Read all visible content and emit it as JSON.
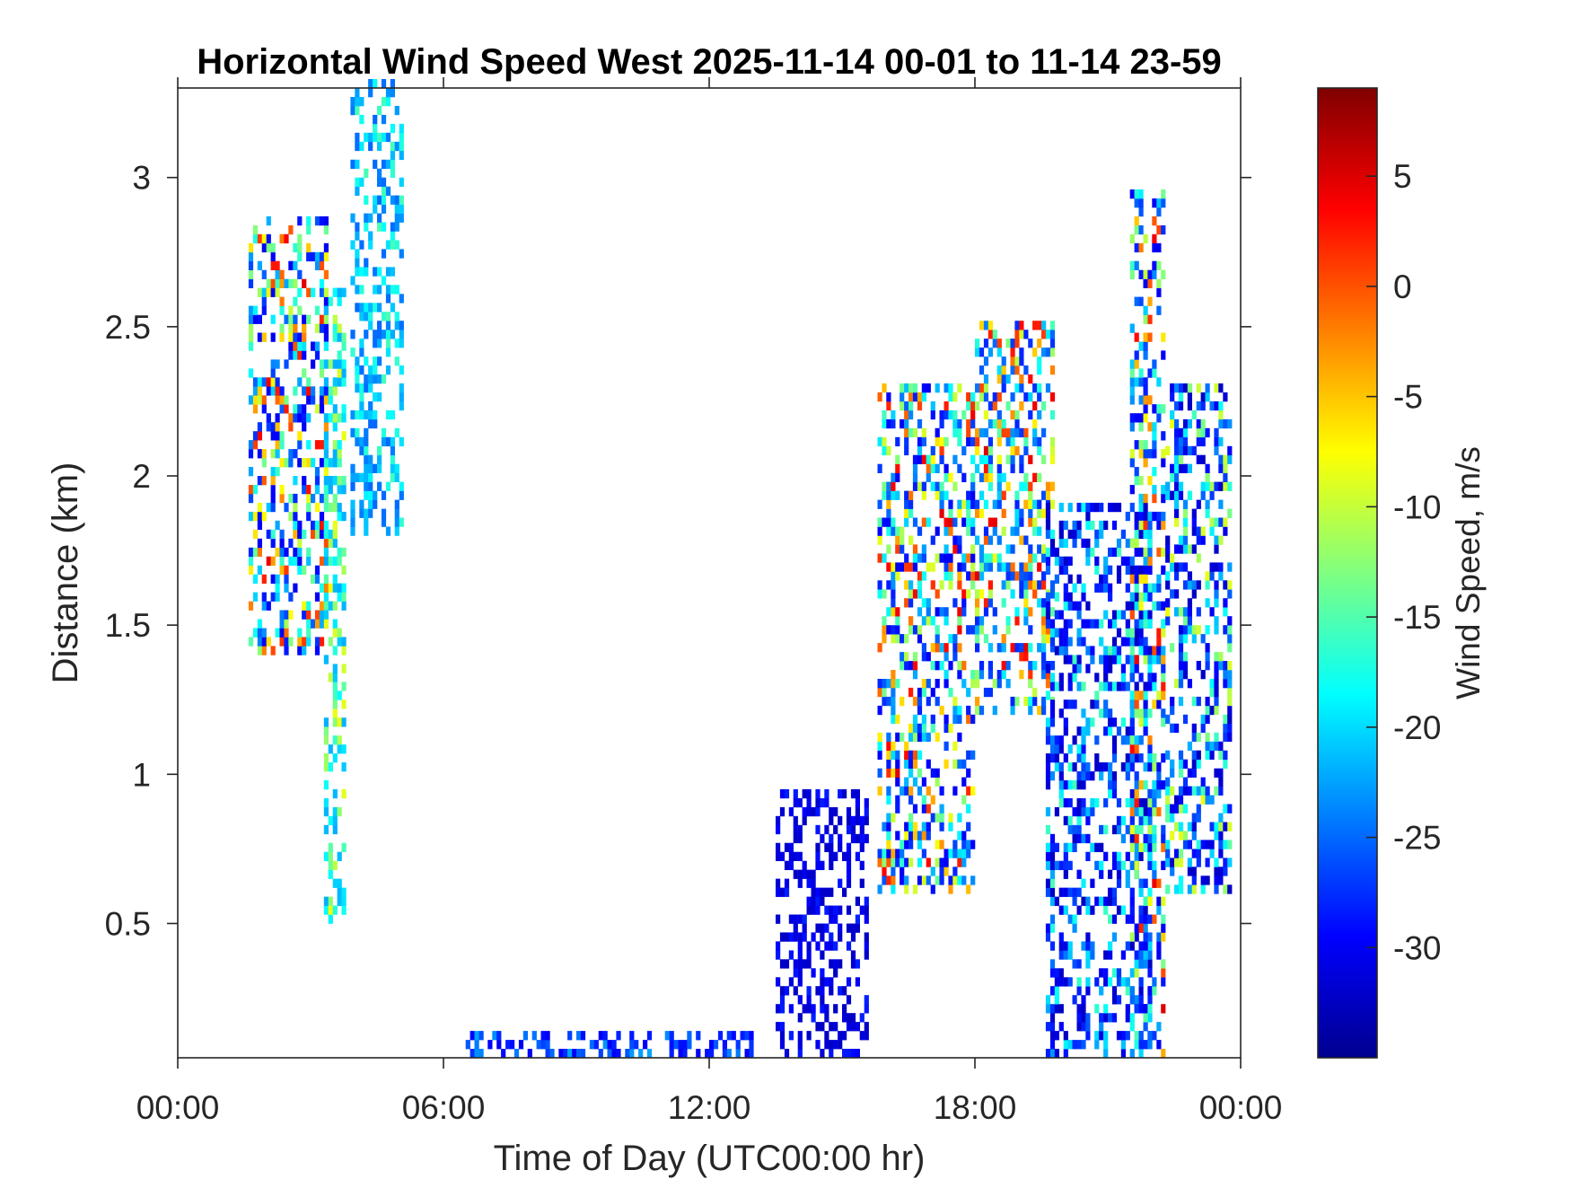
{
  "chart_data": {
    "type": "heatmap",
    "title": "Horizontal Wind Speed West 2025-11-14 00-01 to 11-14 23-59",
    "xlabel": "Time of Day (UTC00:00 hr)",
    "ylabel": "Distance (km)",
    "colorbar_label": "Wind Speed, m/s",
    "xlim": [
      0,
      24
    ],
    "ylim": [
      0.05,
      3.3
    ],
    "clim": [
      -35,
      9
    ],
    "colormap": "jet",
    "x_ticks": [
      {
        "value": 0,
        "label": "00:00"
      },
      {
        "value": 6,
        "label": "06:00"
      },
      {
        "value": 12,
        "label": "12:00"
      },
      {
        "value": 18,
        "label": "18:00"
      },
      {
        "value": 24,
        "label": "00:00"
      }
    ],
    "y_ticks": [
      {
        "value": 0.5,
        "label": "0.5"
      },
      {
        "value": 1,
        "label": "1"
      },
      {
        "value": 1.5,
        "label": "1.5"
      },
      {
        "value": 2,
        "label": "2"
      },
      {
        "value": 2.5,
        "label": "2.5"
      },
      {
        "value": 3,
        "label": "3"
      }
    ],
    "colorbar_ticks": [
      {
        "value": 5,
        "label": "5"
      },
      {
        "value": 0,
        "label": "0"
      },
      {
        "value": -5,
        "label": "-5"
      },
      {
        "value": -10,
        "label": "-10"
      },
      {
        "value": -15,
        "label": "-15"
      },
      {
        "value": -20,
        "label": "-20"
      },
      {
        "value": -25,
        "label": "-25"
      },
      {
        "value": -30,
        "label": "-30"
      }
    ],
    "grid": false,
    "data_regions": [
      {
        "x": [
          1.6,
          3.4
        ],
        "y": [
          1.4,
          2.85
        ],
        "speed": [
          -30,
          5
        ]
      },
      {
        "x": [
          3.3,
          3.8
        ],
        "y": [
          0.5,
          2.6
        ],
        "speed": [
          -22,
          -8
        ]
      },
      {
        "x": [
          3.9,
          5.0
        ],
        "y": [
          1.8,
          3.3
        ],
        "speed": [
          -25,
          -15
        ]
      },
      {
        "x": [
          13.5,
          15.5
        ],
        "y": [
          0.05,
          0.95
        ],
        "speed": [
          -32,
          -28
        ]
      },
      {
        "x": [
          15.8,
          18.0
        ],
        "y": [
          0.6,
          2.3
        ],
        "speed": [
          -30,
          5
        ]
      },
      {
        "x": [
          18.0,
          19.8
        ],
        "y": [
          1.2,
          2.5
        ],
        "speed": [
          -28,
          5
        ]
      },
      {
        "x": [
          19.6,
          22.0
        ],
        "y": [
          0.05,
          1.9
        ],
        "speed": [
          -32,
          -15
        ]
      },
      {
        "x": [
          21.5,
          22.3
        ],
        "y": [
          0.05,
          2.95
        ],
        "speed": [
          -30,
          5
        ]
      },
      {
        "x": [
          22.3,
          23.8
        ],
        "y": [
          0.6,
          2.3
        ],
        "speed": [
          -32,
          -8
        ]
      },
      {
        "x": [
          6.5,
          13.0
        ],
        "y": [
          0.05,
          0.12
        ],
        "speed": [
          -30,
          -22
        ]
      }
    ]
  }
}
